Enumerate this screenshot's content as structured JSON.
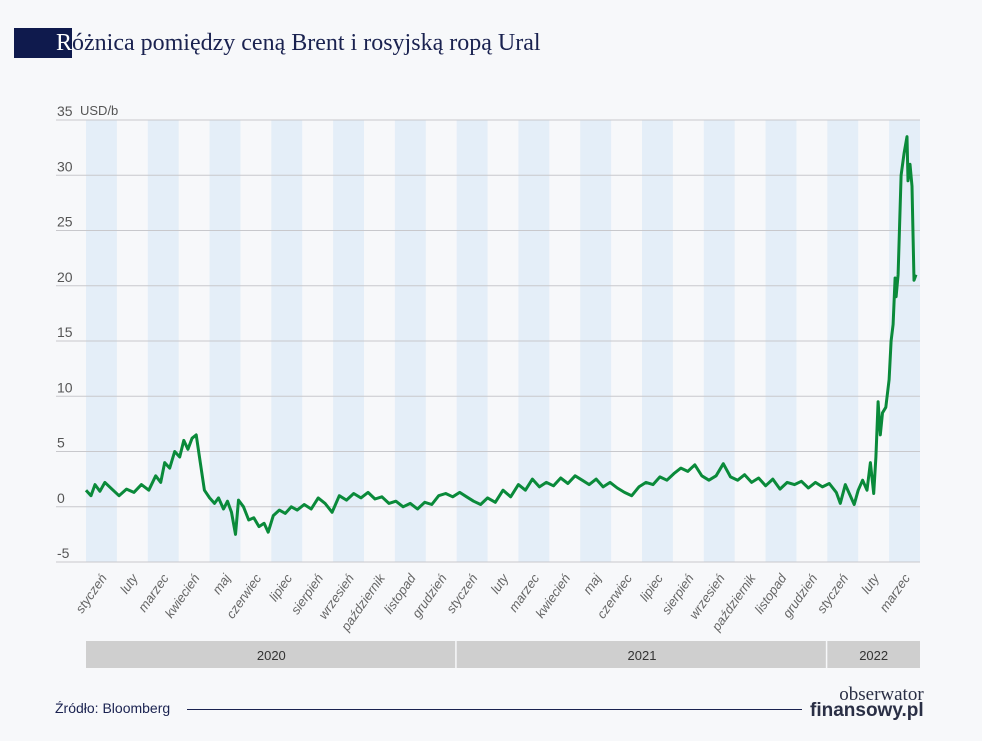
{
  "title": {
    "first_letter": "R",
    "rest": "óżnica pomiędzy ceną Brent i rosyjską ropą Ural"
  },
  "source": "Źródło: Bloomberg",
  "logo": {
    "line1": "obserwator",
    "line2": "finansowy.pl"
  },
  "colors": {
    "line": "#0a8a3a",
    "stripe": "#e4eef8",
    "title_block": "#0f1a4d",
    "year_bar": "#cfcfcf"
  },
  "chart_data": {
    "type": "line",
    "title": "Różnica pomiędzy ceną Brent i rosyjską ropą Ural",
    "ylabel": "USD/b",
    "ylim": [
      -5,
      35
    ],
    "yticks": [
      -5,
      0,
      5,
      10,
      15,
      20,
      25,
      30,
      35
    ],
    "grid": true,
    "xlim": [
      "2020-01-01",
      "2022-03-31"
    ],
    "month_labels": [
      "styczeń",
      "luty",
      "marzec",
      "kwiecień",
      "maj",
      "czerwiec",
      "lipiec",
      "sierpień",
      "wrzesień",
      "październik",
      "listopad",
      "grudzień",
      "styczeń",
      "luty",
      "marzec",
      "kwiecień",
      "maj",
      "czerwiec",
      "lipiec",
      "sierpień",
      "wrzesień",
      "październik",
      "listopad",
      "grudzień",
      "styczeń",
      "luty",
      "marzec"
    ],
    "years": [
      {
        "label": "2020",
        "months": 12
      },
      {
        "label": "2021",
        "months": 12
      },
      {
        "label": "2022",
        "months": 3
      }
    ],
    "series": [
      {
        "points": [
          [
            "2020-01-01",
            1.5
          ],
          [
            "2020-01-06",
            1.0
          ],
          [
            "2020-01-10",
            2.0
          ],
          [
            "2020-01-15",
            1.4
          ],
          [
            "2020-01-20",
            2.2
          ],
          [
            "2020-01-27",
            1.6
          ],
          [
            "2020-02-03",
            1.0
          ],
          [
            "2020-02-10",
            1.6
          ],
          [
            "2020-02-17",
            1.3
          ],
          [
            "2020-02-24",
            2.0
          ],
          [
            "2020-03-02",
            1.5
          ],
          [
            "2020-03-09",
            2.8
          ],
          [
            "2020-03-14",
            2.2
          ],
          [
            "2020-03-18",
            4.0
          ],
          [
            "2020-03-23",
            3.5
          ],
          [
            "2020-03-28",
            5.0
          ],
          [
            "2020-04-02",
            4.5
          ],
          [
            "2020-04-06",
            6.0
          ],
          [
            "2020-04-10",
            5.2
          ],
          [
            "2020-04-14",
            6.2
          ],
          [
            "2020-04-18",
            6.5
          ],
          [
            "2020-04-22",
            4.0
          ],
          [
            "2020-04-26",
            1.5
          ],
          [
            "2020-05-01",
            0.8
          ],
          [
            "2020-05-06",
            0.3
          ],
          [
            "2020-05-10",
            0.8
          ],
          [
            "2020-05-15",
            -0.2
          ],
          [
            "2020-05-19",
            0.5
          ],
          [
            "2020-05-23",
            -0.5
          ],
          [
            "2020-05-27",
            -2.5
          ],
          [
            "2020-05-30",
            0.6
          ],
          [
            "2020-06-04",
            0.0
          ],
          [
            "2020-06-09",
            -1.2
          ],
          [
            "2020-06-14",
            -1.0
          ],
          [
            "2020-06-19",
            -1.8
          ],
          [
            "2020-06-24",
            -1.5
          ],
          [
            "2020-06-28",
            -2.3
          ],
          [
            "2020-07-03",
            -0.8
          ],
          [
            "2020-07-09",
            -0.3
          ],
          [
            "2020-07-15",
            -0.6
          ],
          [
            "2020-07-21",
            0.0
          ],
          [
            "2020-07-27",
            -0.3
          ],
          [
            "2020-08-03",
            0.2
          ],
          [
            "2020-08-10",
            -0.2
          ],
          [
            "2020-08-17",
            0.8
          ],
          [
            "2020-08-24",
            0.3
          ],
          [
            "2020-08-31",
            -0.5
          ],
          [
            "2020-09-07",
            1.0
          ],
          [
            "2020-09-14",
            0.6
          ],
          [
            "2020-09-21",
            1.2
          ],
          [
            "2020-09-28",
            0.8
          ],
          [
            "2020-10-05",
            1.3
          ],
          [
            "2020-10-12",
            0.7
          ],
          [
            "2020-10-19",
            0.9
          ],
          [
            "2020-10-26",
            0.3
          ],
          [
            "2020-11-02",
            0.5
          ],
          [
            "2020-11-09",
            0.0
          ],
          [
            "2020-11-16",
            0.3
          ],
          [
            "2020-11-23",
            -0.2
          ],
          [
            "2020-11-30",
            0.4
          ],
          [
            "2020-12-07",
            0.2
          ],
          [
            "2020-12-14",
            1.0
          ],
          [
            "2020-12-21",
            1.2
          ],
          [
            "2020-12-28",
            0.9
          ],
          [
            "2021-01-04",
            1.3
          ],
          [
            "2021-01-11",
            0.9
          ],
          [
            "2021-01-18",
            0.5
          ],
          [
            "2021-01-25",
            0.2
          ],
          [
            "2021-02-01",
            0.8
          ],
          [
            "2021-02-08",
            0.4
          ],
          [
            "2021-02-15",
            1.5
          ],
          [
            "2021-02-22",
            0.9
          ],
          [
            "2021-03-01",
            2.0
          ],
          [
            "2021-03-08",
            1.5
          ],
          [
            "2021-03-15",
            2.5
          ],
          [
            "2021-03-22",
            1.8
          ],
          [
            "2021-03-29",
            2.2
          ],
          [
            "2021-04-05",
            1.9
          ],
          [
            "2021-04-12",
            2.6
          ],
          [
            "2021-04-19",
            2.1
          ],
          [
            "2021-04-26",
            2.8
          ],
          [
            "2021-05-03",
            2.4
          ],
          [
            "2021-05-10",
            2.0
          ],
          [
            "2021-05-17",
            2.5
          ],
          [
            "2021-05-24",
            1.8
          ],
          [
            "2021-05-31",
            2.2
          ],
          [
            "2021-06-07",
            1.7
          ],
          [
            "2021-06-14",
            1.3
          ],
          [
            "2021-06-21",
            1.0
          ],
          [
            "2021-06-28",
            1.8
          ],
          [
            "2021-07-05",
            2.2
          ],
          [
            "2021-07-12",
            2.0
          ],
          [
            "2021-07-19",
            2.7
          ],
          [
            "2021-07-26",
            2.4
          ],
          [
            "2021-08-02",
            3.0
          ],
          [
            "2021-08-09",
            3.5
          ],
          [
            "2021-08-16",
            3.2
          ],
          [
            "2021-08-23",
            3.8
          ],
          [
            "2021-08-30",
            2.8
          ],
          [
            "2021-09-06",
            2.4
          ],
          [
            "2021-09-13",
            2.8
          ],
          [
            "2021-09-20",
            3.9
          ],
          [
            "2021-09-27",
            2.7
          ],
          [
            "2021-10-04",
            2.4
          ],
          [
            "2021-10-11",
            2.9
          ],
          [
            "2021-10-18",
            2.2
          ],
          [
            "2021-10-25",
            2.6
          ],
          [
            "2021-11-01",
            1.9
          ],
          [
            "2021-11-08",
            2.5
          ],
          [
            "2021-11-15",
            1.6
          ],
          [
            "2021-11-22",
            2.2
          ],
          [
            "2021-11-29",
            2.0
          ],
          [
            "2021-12-06",
            2.3
          ],
          [
            "2021-12-13",
            1.7
          ],
          [
            "2021-12-20",
            2.2
          ],
          [
            "2021-12-27",
            1.8
          ],
          [
            "2022-01-03",
            2.1
          ],
          [
            "2022-01-10",
            1.3
          ],
          [
            "2022-01-14",
            0.3
          ],
          [
            "2022-01-19",
            2.0
          ],
          [
            "2022-01-24",
            1.0
          ],
          [
            "2022-01-28",
            0.2
          ],
          [
            "2022-02-01",
            1.5
          ],
          [
            "2022-02-05",
            2.4
          ],
          [
            "2022-02-09",
            1.5
          ],
          [
            "2022-02-12",
            4.0
          ],
          [
            "2022-02-15",
            1.2
          ],
          [
            "2022-02-17",
            4.5
          ],
          [
            "2022-02-19",
            9.5
          ],
          [
            "2022-02-21",
            6.5
          ],
          [
            "2022-02-23",
            8.5
          ],
          [
            "2022-02-26",
            9.0
          ],
          [
            "2022-03-01",
            11.5
          ],
          [
            "2022-03-03",
            15.0
          ],
          [
            "2022-03-05",
            16.5
          ],
          [
            "2022-03-07",
            20.7
          ],
          [
            "2022-03-08",
            19.0
          ],
          [
            "2022-03-10",
            21.0
          ],
          [
            "2022-03-13",
            30.0
          ],
          [
            "2022-03-16",
            32.0
          ],
          [
            "2022-03-19",
            33.5
          ],
          [
            "2022-03-20",
            29.5
          ],
          [
            "2022-03-22",
            31.0
          ],
          [
            "2022-03-24",
            29.0
          ],
          [
            "2022-03-26",
            20.5
          ],
          [
            "2022-03-28",
            21.0
          ]
        ]
      }
    ]
  }
}
